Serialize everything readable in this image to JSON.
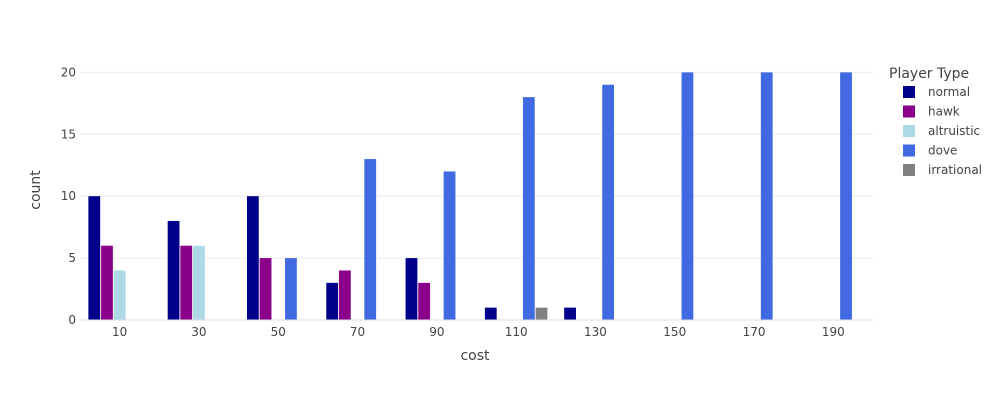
{
  "chart_data": {
    "type": "bar",
    "barmode": "group",
    "xlabel": "cost",
    "ylabel": "count",
    "ylim": [
      0,
      21
    ],
    "xlim": [
      0,
      200
    ],
    "x_ticks": [
      "10",
      "30",
      "50",
      "70",
      "90",
      "110",
      "130",
      "150",
      "170",
      "190"
    ],
    "y_ticks": [
      "0",
      "5",
      "10",
      "15",
      "20"
    ],
    "grid": true,
    "legend_title": "Player Type",
    "legend_position": "right",
    "series": [
      {
        "name": "normal",
        "color": "#00008b",
        "points": [
          [
            10,
            10
          ],
          [
            30,
            8
          ],
          [
            50,
            10
          ],
          [
            70,
            3
          ],
          [
            90,
            5
          ],
          [
            110,
            1
          ],
          [
            130,
            1
          ]
        ]
      },
      {
        "name": "hawk",
        "color": "#8b008b",
        "points": [
          [
            10,
            6
          ],
          [
            30,
            6
          ],
          [
            50,
            5
          ],
          [
            70,
            4
          ],
          [
            90,
            3
          ]
        ]
      },
      {
        "name": "altruistic",
        "color": "#add8e6",
        "points": [
          [
            10,
            4
          ],
          [
            30,
            6
          ]
        ]
      },
      {
        "name": "dove",
        "color": "#4169e1",
        "points": [
          [
            50,
            5
          ],
          [
            70,
            13
          ],
          [
            90,
            12
          ],
          [
            110,
            18
          ],
          [
            130,
            19
          ],
          [
            150,
            20
          ],
          [
            170,
            20
          ],
          [
            190,
            20
          ]
        ]
      },
      {
        "name": "irrational",
        "color": "#808080",
        "points": [
          [
            110,
            1
          ]
        ]
      }
    ]
  }
}
